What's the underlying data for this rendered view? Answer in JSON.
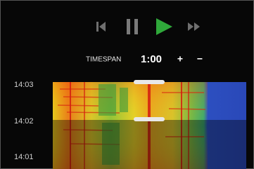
{
  "controls": {
    "timespan_label": "TIMESPAN",
    "timespan_value": "1:00",
    "plus": "+",
    "minus": "−"
  },
  "time_axis": {
    "labels": [
      "14:03",
      "14:02",
      "14:01"
    ]
  }
}
